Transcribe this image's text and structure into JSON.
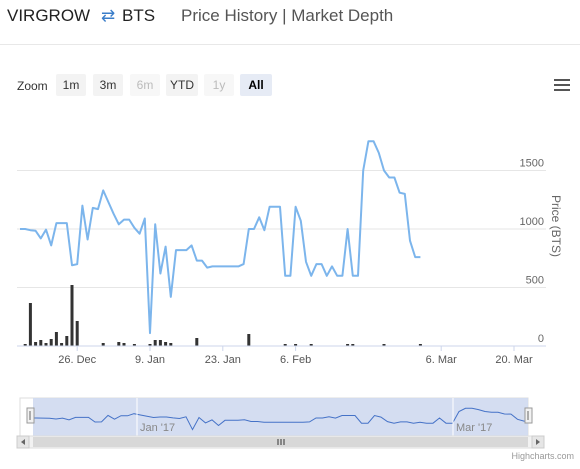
{
  "header": {
    "base_asset": "VIRGROW",
    "swap_icon": "swap-arrows-icon",
    "quote_asset": "BTS",
    "view_tabs": "Price History | Market Depth"
  },
  "toolbar": {
    "zoom_label": "Zoom",
    "buttons": [
      {
        "label": "1m",
        "state": "normal"
      },
      {
        "label": "3m",
        "state": "normal"
      },
      {
        "label": "6m",
        "state": "disabled"
      },
      {
        "label": "YTD",
        "state": "normal"
      },
      {
        "label": "1y",
        "state": "disabled"
      },
      {
        "label": "All",
        "state": "active"
      }
    ],
    "menu_icon": "hamburger-menu-icon"
  },
  "chart_data": {
    "type": "line",
    "ylabel": "Price (BTS)",
    "y_ticks": [
      "0",
      "500",
      "1000",
      "1500"
    ],
    "ylim": [
      0,
      1900
    ],
    "x_ticks": [
      {
        "label": "26. Dec",
        "day": 11
      },
      {
        "label": "9. Jan",
        "day": 25
      },
      {
        "label": "23. Jan",
        "day": 39
      },
      {
        "label": "6. Feb",
        "day": 53
      },
      {
        "label": "6. Mar",
        "day": 81
      },
      {
        "label": "20. Mar",
        "day": 95
      }
    ],
    "line_color": "#7cb5ec",
    "volume_color": "#333333",
    "grid": true,
    "price": [
      [
        0,
        1000
      ],
      [
        1,
        1000
      ],
      [
        2,
        990
      ],
      [
        3,
        985
      ],
      [
        4,
        920
      ],
      [
        5,
        995
      ],
      [
        6,
        860
      ],
      [
        7,
        1050
      ],
      [
        8,
        1050
      ],
      [
        9,
        1050
      ],
      [
        10,
        690
      ],
      [
        11,
        700
      ],
      [
        12,
        1200
      ],
      [
        13,
        910
      ],
      [
        14,
        1180
      ],
      [
        15,
        1170
      ],
      [
        16,
        1330
      ],
      [
        17,
        1230
      ],
      [
        18,
        1130
      ],
      [
        19,
        1040
      ],
      [
        20,
        1080
      ],
      [
        21,
        1080
      ],
      [
        22,
        1010
      ],
      [
        23,
        960
      ],
      [
        24,
        1090
      ],
      [
        25,
        110
      ],
      [
        26,
        1040
      ],
      [
        27,
        620
      ],
      [
        28,
        850
      ],
      [
        29,
        420
      ],
      [
        30,
        820
      ],
      [
        31,
        820
      ],
      [
        32,
        820
      ],
      [
        33,
        860
      ],
      [
        34,
        730
      ],
      [
        35,
        730
      ],
      [
        36,
        670
      ],
      [
        37,
        680
      ],
      [
        38,
        680
      ],
      [
        39,
        680
      ],
      [
        40,
        680
      ],
      [
        41,
        680
      ],
      [
        42,
        680
      ],
      [
        43,
        700
      ],
      [
        44,
        1000
      ],
      [
        45,
        1000
      ],
      [
        46,
        1100
      ],
      [
        47,
        990
      ],
      [
        48,
        1190
      ],
      [
        49,
        1190
      ],
      [
        50,
        1190
      ],
      [
        51,
        600
      ],
      [
        52,
        600
      ],
      [
        53,
        1190
      ],
      [
        54,
        1070
      ],
      [
        55,
        720
      ],
      [
        56,
        600
      ],
      [
        57,
        700
      ],
      [
        58,
        700
      ],
      [
        59,
        600
      ],
      [
        60,
        680
      ],
      [
        61,
        600
      ],
      [
        62,
        600
      ],
      [
        63,
        1000
      ],
      [
        64,
        600
      ],
      [
        65,
        600
      ],
      [
        66,
        1500
      ],
      [
        67,
        1750
      ],
      [
        68,
        1750
      ],
      [
        69,
        1650
      ],
      [
        70,
        1500
      ],
      [
        71,
        1440
      ],
      [
        72,
        1440
      ],
      [
        73,
        1310
      ],
      [
        74,
        1300
      ],
      [
        75,
        900
      ],
      [
        76,
        760
      ],
      [
        77,
        760
      ]
    ],
    "volume": [
      [
        1,
        20
      ],
      [
        2,
        430
      ],
      [
        3,
        40
      ],
      [
        4,
        60
      ],
      [
        5,
        30
      ],
      [
        6,
        70
      ],
      [
        7,
        140
      ],
      [
        8,
        30
      ],
      [
        9,
        100
      ],
      [
        10,
        610
      ],
      [
        11,
        250
      ],
      [
        16,
        30
      ],
      [
        19,
        40
      ],
      [
        20,
        30
      ],
      [
        22,
        20
      ],
      [
        25,
        20
      ],
      [
        26,
        60
      ],
      [
        27,
        60
      ],
      [
        28,
        40
      ],
      [
        29,
        30
      ],
      [
        34,
        80
      ],
      [
        44,
        120
      ],
      [
        51,
        20
      ],
      [
        53,
        20
      ],
      [
        56,
        20
      ],
      [
        63,
        20
      ],
      [
        64,
        20
      ],
      [
        70,
        20
      ],
      [
        77,
        20
      ]
    ]
  },
  "navigator": {
    "labels": [
      "Jan '17",
      "Mar '17"
    ]
  },
  "credits": "Highcharts.com"
}
